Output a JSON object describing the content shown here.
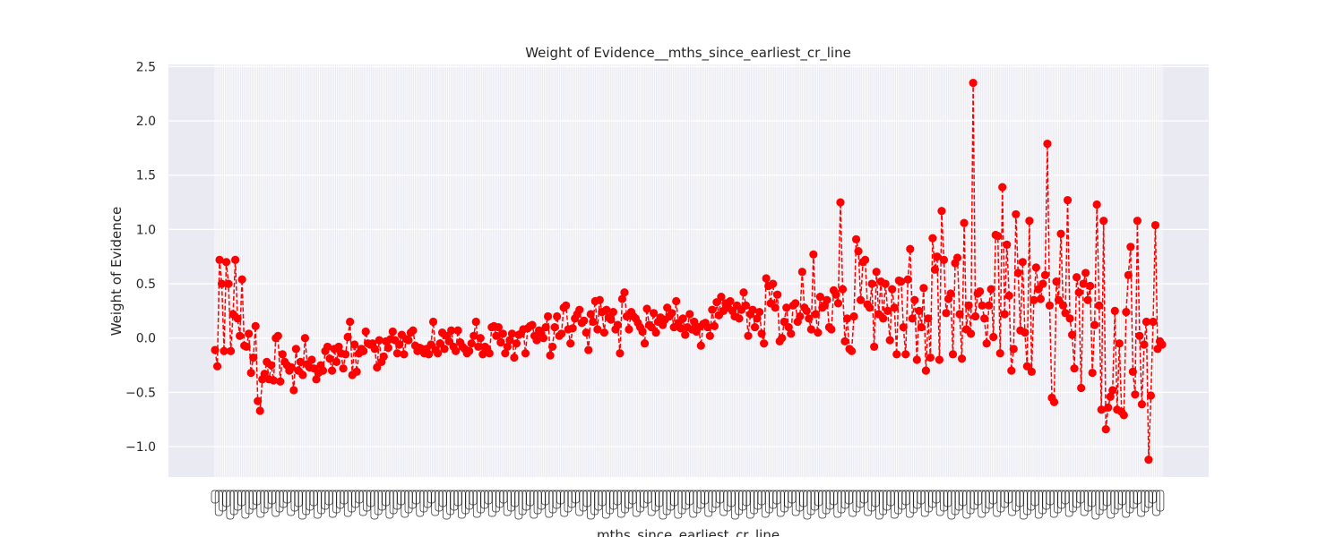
{
  "chart_data": {
    "type": "line",
    "title": "Weight of Evidence__mths_since_earliest_cr_line",
    "xlabel": "mths_since_earliest_cr_line",
    "ylabel": "Weight of Evidence",
    "ylim": [
      -1.28,
      2.52
    ],
    "yticks": [
      "−1.0",
      "−0.5",
      "0.0",
      "0.5",
      "1.0",
      "1.5",
      "2.0",
      "2.5"
    ],
    "ytick_values": [
      -1.0,
      -0.5,
      0.0,
      0.5,
      1.0,
      1.5,
      2.0,
      2.5
    ],
    "grid": true,
    "marker": "o",
    "linestyle": "dashed",
    "line_color": "#ff0000",
    "background_color": "#eaeaf2",
    "x_categories_count": 500,
    "series": [
      {
        "values": [
          -0.11,
          -0.26,
          0.72,
          0.5,
          -0.12,
          0.7,
          0.5,
          -0.12,
          0.22,
          0.72,
          0.18,
          0.02,
          0.54,
          -0.07,
          -0.08,
          0.04,
          -0.32,
          -0.18,
          0.11,
          -0.58,
          -0.67,
          -0.38,
          -0.33,
          -0.22,
          -0.38,
          -0.25,
          -0.39,
          0.0,
          0.02,
          -0.4,
          -0.15,
          -0.22,
          -0.25,
          -0.3,
          -0.27,
          -0.48,
          -0.1,
          -0.3,
          -0.22,
          -0.34,
          0.0,
          -0.24,
          -0.27,
          -0.2,
          -0.28,
          -0.38,
          -0.32,
          -0.25,
          -0.3,
          -0.12,
          -0.08,
          -0.19,
          -0.3,
          -0.1,
          -0.22,
          -0.08,
          -0.14,
          -0.28,
          -0.15,
          0.01,
          0.15,
          -0.34,
          -0.06,
          -0.31,
          -0.14,
          -0.1,
          -0.12,
          0.06,
          -0.05,
          -0.06,
          -0.05,
          -0.1,
          -0.27,
          -0.02,
          -0.22,
          -0.17,
          -0.03,
          -0.09,
          -0.01,
          0.06,
          -0.02,
          -0.14,
          -0.06,
          0.03,
          -0.15,
          -0.01,
          -0.02,
          0.05,
          0.07,
          -0.07,
          -0.12,
          -0.09,
          -0.1,
          -0.14,
          -0.1,
          -0.15,
          -0.06,
          0.15,
          -0.11,
          -0.14,
          -0.05,
          0.05,
          -0.1,
          0.02,
          -0.03,
          0.07,
          -0.08,
          -0.12,
          0.07,
          -0.04,
          -0.08,
          -0.1,
          -0.14,
          -0.12,
          -0.05,
          0.02,
          0.15,
          -0.08,
          0.0,
          -0.15,
          -0.08,
          -0.1,
          -0.14,
          0.1,
          0.11,
          0.02,
          0.1,
          -0.04,
          0.04,
          -0.14,
          -0.08,
          -0.02,
          0.04,
          -0.18,
          -0.05,
          0.03,
          0.04,
          0.08,
          -0.14,
          0.09,
          0.11,
          0.12,
          0.02,
          -0.02,
          0.07,
          0.04,
          0.0,
          0.1,
          0.2,
          -0.16,
          -0.08,
          0.1,
          0.2,
          0.02,
          0.04,
          0.28,
          0.3,
          0.08,
          -0.05,
          0.09,
          0.18,
          0.22,
          0.26,
          0.14,
          0.16,
          0.05,
          -0.11,
          0.22,
          0.15,
          0.34,
          0.08,
          0.35,
          0.24,
          0.05,
          0.26,
          0.19,
          0.17,
          0.24,
          0.08,
          0.12,
          -0.14,
          0.36,
          0.42,
          0.2,
          0.08,
          0.24,
          0.2,
          0.18,
          0.14,
          0.1,
          0.06,
          -0.05,
          0.27,
          0.12,
          0.1,
          0.23,
          0.05,
          0.15,
          0.19,
          0.12,
          0.17,
          0.28,
          0.2,
          0.23,
          0.1,
          0.34,
          0.14,
          0.09,
          0.18,
          0.03,
          0.1,
          0.22,
          0.08,
          0.15,
          0.06,
          0.1,
          -0.07,
          0.13,
          0.14,
          0.1,
          0.02,
          0.26,
          0.11,
          0.33,
          0.21,
          0.38,
          0.25,
          0.32,
          0.28,
          0.34,
          0.25,
          0.2,
          0.3,
          0.18,
          0.26,
          0.42,
          0.3,
          0.02,
          0.22,
          0.26,
          0.1,
          0.18,
          0.24,
          0.04,
          -0.05,
          0.55,
          0.48,
          0.32,
          0.5,
          0.28,
          0.4,
          -0.03,
          0.0,
          0.15,
          0.28,
          0.1,
          0.04,
          0.3,
          0.32,
          0.15,
          0.2,
          0.61,
          0.28,
          0.25,
          0.18,
          0.08,
          0.77,
          0.22,
          0.05,
          0.38,
          0.28,
          0.3,
          0.35,
          0.1,
          0.08,
          0.44,
          0.4,
          0.32,
          1.25,
          0.45,
          -0.03,
          0.18,
          -0.1,
          -0.12,
          0.2,
          0.91,
          0.8,
          0.35,
          0.7,
          0.72,
          0.31,
          0.28,
          0.5,
          -0.08,
          0.61,
          0.22,
          0.52,
          0.18,
          0.5,
          0.25,
          -0.02,
          0.45,
          0.28,
          -0.15,
          0.53,
          0.52,
          0.1,
          -0.15,
          0.54,
          0.82,
          0.18,
          0.35,
          -0.2,
          0.25,
          0.1,
          0.46,
          -0.3,
          0.18,
          -0.18,
          0.92,
          0.63,
          0.75,
          -0.2,
          1.17,
          0.72,
          0.23,
          0.36,
          0.41,
          -0.15,
          0.69,
          0.74,
          0.22,
          -0.19,
          1.06,
          0.08,
          0.3,
          0.04,
          2.35,
          0.2,
          0.41,
          0.43,
          0.3,
          0.18,
          -0.05,
          0.3,
          0.45,
          0.01,
          0.95,
          0.94,
          -0.14,
          1.39,
          0.22,
          0.86,
          0.39,
          -0.3,
          -0.1,
          1.14,
          0.6,
          0.07,
          0.7,
          0.05,
          -0.26,
          1.08,
          -0.31,
          0.35,
          0.65,
          0.45,
          0.36,
          0.5,
          0.58,
          1.79,
          0.3,
          -0.55,
          -0.59,
          0.52,
          0.35,
          0.96,
          0.3,
          0.23,
          1.27,
          0.18,
          0.03,
          -0.28,
          0.56,
          0.42,
          -0.46,
          0.5,
          0.6,
          0.35,
          0.48,
          -0.32,
          0.12,
          1.23,
          0.3,
          -0.66,
          1.08,
          -0.84,
          -0.64,
          -0.54,
          -0.48,
          0.25,
          -0.66,
          -0.05,
          -0.68,
          -0.71,
          0.24,
          0.58,
          0.84,
          -0.31,
          -0.52,
          1.08,
          0.02,
          -0.61,
          -0.06,
          0.15,
          -1.12,
          -0.53,
          0.15,
          1.04,
          -0.1,
          -0.03,
          -0.06
        ]
      }
    ]
  }
}
